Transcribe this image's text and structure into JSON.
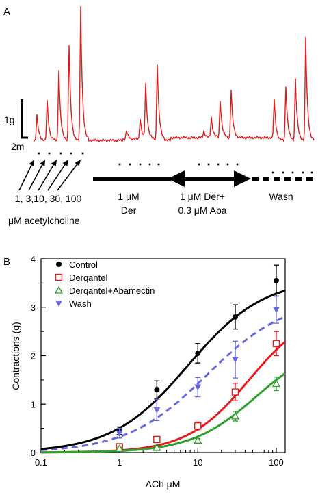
{
  "chart_data": [
    {
      "type": "line",
      "panel_label": "A",
      "scale_bar": {
        "y_label": "1g",
        "x_label": "2m"
      },
      "application_labels": {
        "ach_doses": "1, 3,10, 30, 100",
        "ach_unit": "μM acetylcholine",
        "der_line1": "1 μM",
        "der_line2": "Der",
        "derAba_line1": "1 μM Der+",
        "derAba_line2": "0.3 μM Aba",
        "wash": "Wash"
      },
      "trace_color": "#e41a1c"
    },
    {
      "type": "scatter",
      "panel_label": "B",
      "xlabel": "ACh μM",
      "ylabel": "Contractions (g)",
      "xscale": "log",
      "xlim": [
        0.1,
        130
      ],
      "ylim": [
        0,
        4
      ],
      "x_ticks": [
        0.1,
        1,
        10,
        100
      ],
      "y_ticks": [
        0,
        1,
        2,
        3,
        4
      ],
      "legend_position": "top-left",
      "x": [
        1,
        3,
        10,
        30,
        100
      ],
      "series": [
        {
          "name": "Control",
          "color": "#000000",
          "marker": "filled-circle",
          "line": "solid",
          "values": [
            0.45,
            1.3,
            2.05,
            2.8,
            3.55
          ],
          "errors": [
            0.08,
            0.18,
            0.2,
            0.25,
            0.32
          ],
          "fit": {
            "top": 3.6,
            "ec50": 7.5,
            "hill": 0.9
          }
        },
        {
          "name": "Derqantel",
          "color": "#e41a1c",
          "marker": "open-square",
          "line": "solid",
          "values": [
            0.12,
            0.27,
            0.55,
            1.25,
            2.25
          ],
          "errors": [
            0.03,
            0.04,
            0.08,
            0.18,
            0.25
          ],
          "fit": {
            "top": 3.0,
            "ec50": 45,
            "hill": 1.1
          }
        },
        {
          "name": "Derqantel+Abamectin",
          "color": "#2ca02c",
          "marker": "open-triangle",
          "line": "solid",
          "values": [
            0.08,
            0.1,
            0.25,
            0.75,
            1.42
          ],
          "errors": [
            0.03,
            0.03,
            0.04,
            0.1,
            0.14
          ],
          "fit": {
            "top": 2.3,
            "ec50": 55,
            "hill": 1.05
          }
        },
        {
          "name": "Wash",
          "color": "#6a6ae0",
          "marker": "filled-down-triangle",
          "line": "dashed",
          "values": [
            0.4,
            0.88,
            1.35,
            1.92,
            2.95
          ],
          "errors": [
            0.1,
            0.22,
            0.2,
            0.38,
            0.28
          ],
          "fit": {
            "top": 3.2,
            "ec50": 13,
            "hill": 0.85
          }
        }
      ]
    }
  ]
}
